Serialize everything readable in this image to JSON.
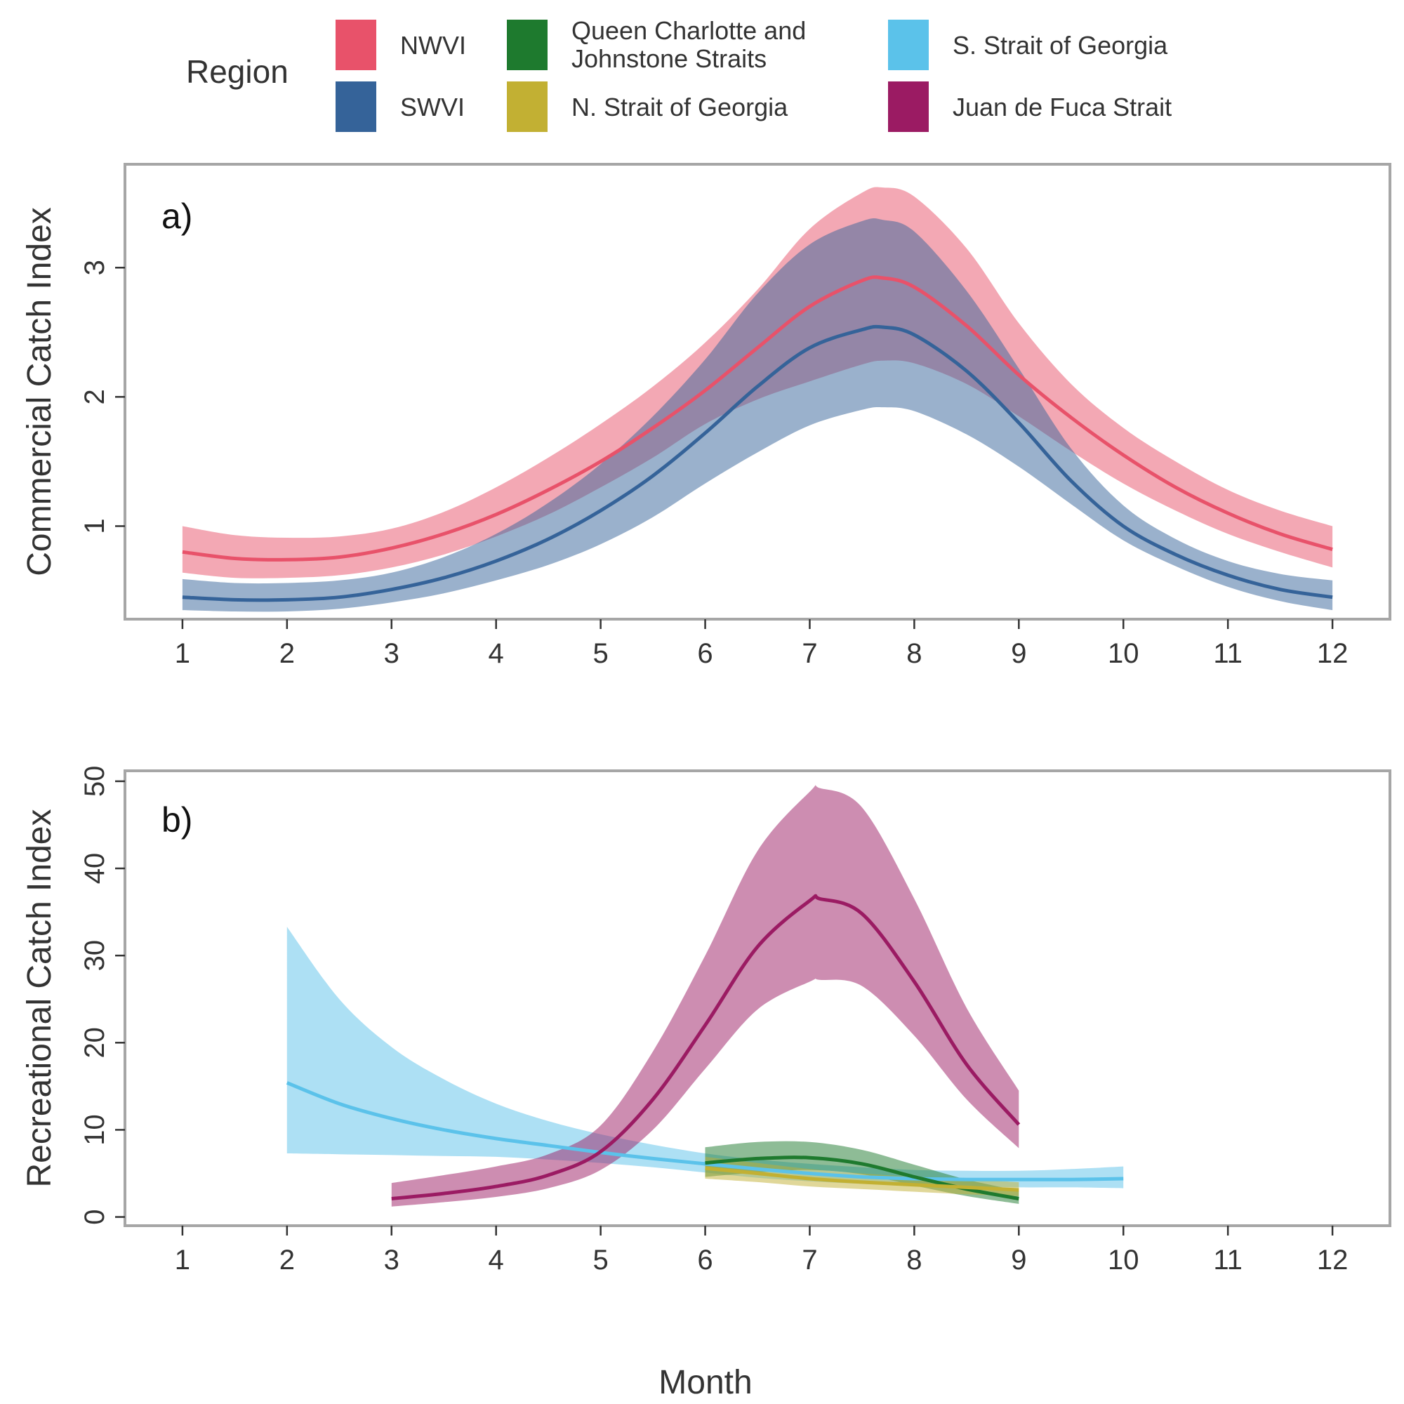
{
  "legend": {
    "title": "Region",
    "items": [
      {
        "label": "NWVI",
        "color": "#E8526A"
      },
      {
        "label": "SWVI",
        "color": "#356399"
      },
      {
        "label": "Queen Charlotte and\nJohnstone Straits",
        "color": "#1E7A2E"
      },
      {
        "label": "N. Strait of Georgia",
        "color": "#C2B033"
      },
      {
        "label": "S. Strait of Georgia",
        "color": "#5BC2EA"
      },
      {
        "label": "Juan de Fuca Strait",
        "color": "#9B1B63"
      }
    ]
  },
  "xlabel": "Month",
  "chart_data": [
    {
      "type": "line",
      "panel_label": "a)",
      "ylabel": "Commercial Catch Index",
      "xlim": [
        0.45,
        12.55
      ],
      "ylim": [
        0.28,
        3.8
      ],
      "x_ticks": [
        1,
        2,
        3,
        4,
        5,
        6,
        7,
        8,
        9,
        10,
        11,
        12
      ],
      "y_ticks": [
        1,
        2,
        3
      ],
      "grid": false,
      "legend_position": "top",
      "series": [
        {
          "name": "NWVI",
          "color": "#E8526A",
          "x": [
            1,
            1.5,
            2,
            2.5,
            3,
            3.5,
            4,
            4.5,
            5,
            5.5,
            6,
            6.5,
            7,
            7.5,
            7.7,
            8,
            8.5,
            9,
            9.5,
            10,
            10.5,
            11,
            11.5,
            12
          ],
          "y": [
            0.8,
            0.75,
            0.74,
            0.76,
            0.83,
            0.94,
            1.09,
            1.28,
            1.5,
            1.76,
            2.05,
            2.38,
            2.7,
            2.9,
            2.92,
            2.85,
            2.55,
            2.17,
            1.84,
            1.55,
            1.3,
            1.1,
            0.94,
            0.82
          ],
          "lower": [
            0.64,
            0.6,
            0.6,
            0.62,
            0.68,
            0.78,
            0.92,
            1.09,
            1.3,
            1.53,
            1.79,
            1.98,
            2.12,
            2.25,
            2.28,
            2.26,
            2.1,
            1.85,
            1.58,
            1.33,
            1.12,
            0.94,
            0.8,
            0.68
          ],
          "upper": [
            1.0,
            0.93,
            0.91,
            0.92,
            0.98,
            1.11,
            1.3,
            1.53,
            1.79,
            2.08,
            2.42,
            2.83,
            3.3,
            3.58,
            3.62,
            3.55,
            3.15,
            2.57,
            2.1,
            1.76,
            1.5,
            1.28,
            1.12,
            1.0
          ]
        },
        {
          "name": "SWVI",
          "color": "#356399",
          "x": [
            1,
            1.5,
            2,
            2.5,
            3,
            3.5,
            4,
            4.5,
            5,
            5.5,
            6,
            6.5,
            7,
            7.5,
            7.7,
            8,
            8.5,
            9,
            9.5,
            10,
            10.5,
            11,
            11.5,
            12
          ],
          "y": [
            0.45,
            0.43,
            0.43,
            0.45,
            0.51,
            0.6,
            0.73,
            0.9,
            1.12,
            1.39,
            1.72,
            2.08,
            2.38,
            2.52,
            2.54,
            2.48,
            2.2,
            1.8,
            1.35,
            1.0,
            0.78,
            0.62,
            0.51,
            0.45
          ],
          "lower": [
            0.35,
            0.34,
            0.34,
            0.36,
            0.41,
            0.48,
            0.58,
            0.7,
            0.86,
            1.07,
            1.33,
            1.57,
            1.78,
            1.9,
            1.92,
            1.89,
            1.71,
            1.46,
            1.17,
            0.89,
            0.69,
            0.53,
            0.42,
            0.35
          ],
          "upper": [
            0.59,
            0.56,
            0.56,
            0.58,
            0.64,
            0.76,
            0.94,
            1.18,
            1.48,
            1.85,
            2.29,
            2.8,
            3.18,
            3.36,
            3.37,
            3.28,
            2.82,
            2.22,
            1.6,
            1.16,
            0.9,
            0.73,
            0.63,
            0.58
          ]
        }
      ]
    },
    {
      "type": "line",
      "panel_label": "b)",
      "ylabel": "Recreational Catch Index",
      "xlim": [
        0.45,
        12.55
      ],
      "ylim": [
        -1,
        51.2
      ],
      "x_ticks": [
        1,
        2,
        3,
        4,
        5,
        6,
        7,
        8,
        9,
        10,
        11,
        12
      ],
      "y_ticks": [
        0,
        10,
        20,
        30,
        40,
        50
      ],
      "grid": false,
      "series": [
        {
          "name": "S. Strait of Georgia",
          "color": "#5BC2EA",
          "x": [
            2,
            2.5,
            3,
            3.5,
            4,
            4.5,
            5,
            5.5,
            6,
            6.5,
            7,
            7.5,
            8,
            8.5,
            9,
            9.5,
            10
          ],
          "y": [
            15.4,
            13.0,
            11.3,
            10.0,
            9.0,
            8.2,
            7.4,
            6.7,
            6.1,
            5.5,
            5.0,
            4.6,
            4.4,
            4.3,
            4.3,
            4.3,
            4.4
          ],
          "lower": [
            7.3,
            7.2,
            7.1,
            7.0,
            6.9,
            6.6,
            6.2,
            5.7,
            5.1,
            4.5,
            4.1,
            3.8,
            3.6,
            3.5,
            3.4,
            3.4,
            3.3
          ],
          "upper": [
            33.3,
            25.0,
            19.5,
            15.8,
            13.0,
            11.0,
            9.5,
            8.3,
            7.3,
            6.6,
            6.1,
            5.7,
            5.4,
            5.3,
            5.3,
            5.5,
            5.8
          ]
        },
        {
          "name": "Juan de Fuca Strait",
          "color": "#9B1B63",
          "x": [
            3,
            3.5,
            4,
            4.5,
            5,
            5.5,
            6,
            6.5,
            7,
            7.1,
            7.5,
            8,
            8.5,
            9
          ],
          "y": [
            2.1,
            2.7,
            3.5,
            4.8,
            7.5,
            13.5,
            22.0,
            31.0,
            36.3,
            36.5,
            34.8,
            27.0,
            17.5,
            10.6
          ],
          "lower": [
            1.2,
            1.7,
            2.3,
            3.3,
            5.4,
            10.0,
            17.0,
            23.8,
            27.0,
            27.2,
            26.5,
            20.8,
            13.5,
            7.9
          ],
          "upper": [
            3.9,
            4.8,
            5.8,
            7.2,
            10.5,
            19.0,
            30.0,
            42.0,
            48.8,
            49.2,
            47.0,
            36.5,
            24.0,
            14.5
          ]
        },
        {
          "name": "Queen Charlotte and Johnstone Straits",
          "color": "#1E7A2E",
          "x": [
            6,
            6.5,
            7,
            7.5,
            8,
            8.5,
            9
          ],
          "y": [
            6.2,
            6.7,
            6.8,
            6.1,
            4.6,
            3.2,
            2.1
          ],
          "lower": [
            4.6,
            5.1,
            5.4,
            4.9,
            3.6,
            2.4,
            1.5
          ],
          "upper": [
            8.0,
            8.6,
            8.6,
            7.7,
            6.0,
            4.3,
            3.0
          ]
        },
        {
          "name": "N. Strait of Georgia",
          "color": "#C2B033",
          "x": [
            6,
            6.5,
            7,
            7.5,
            8,
            8.5,
            9
          ],
          "y": [
            5.6,
            5.0,
            4.4,
            4.0,
            3.7,
            3.4,
            3.1
          ],
          "lower": [
            4.4,
            4.0,
            3.5,
            3.2,
            2.9,
            2.6,
            2.4
          ],
          "upper": [
            6.9,
            6.2,
            5.5,
            5.0,
            4.6,
            4.3,
            4.0
          ]
        }
      ]
    }
  ]
}
